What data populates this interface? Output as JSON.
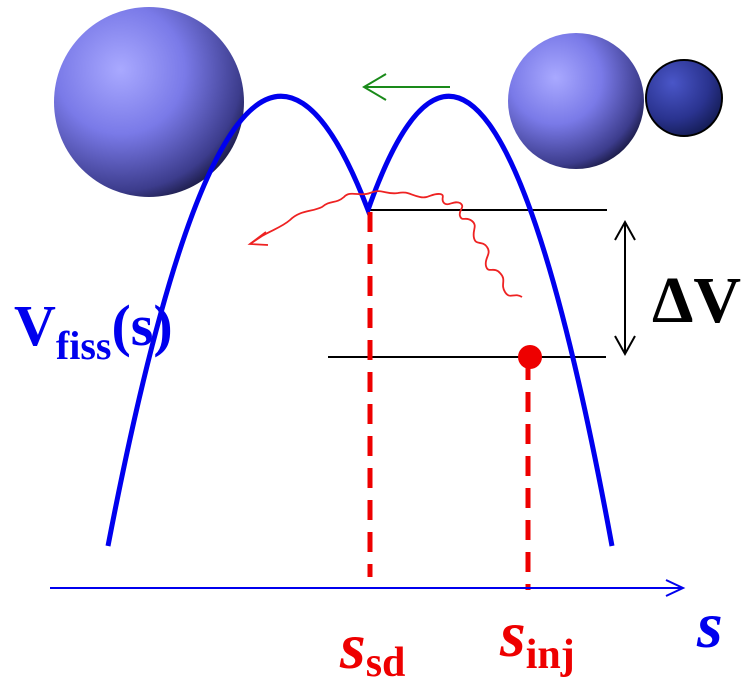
{
  "labels": {
    "potential_main": "V",
    "potential_sub": "fiss",
    "potential_arg": "(s)",
    "delta": "ΔV",
    "axis": "s",
    "saddle_main": "s",
    "saddle_sub": "sd",
    "injection_main": "s",
    "injection_sub": "inj"
  },
  "colors": {
    "curve": "#0000ee",
    "axis": "#0000ee",
    "marker": "#ee0000",
    "trajectory": "#ee2222",
    "arrow_green": "#1a8a1a",
    "lines": "#000000",
    "sphere": "#7878e8",
    "sphere_small": "#2e3aa8"
  },
  "icons": [
    "large-nucleus-icon",
    "dinuclear-system-icon",
    "fusion-direction-arrow-icon"
  ]
}
